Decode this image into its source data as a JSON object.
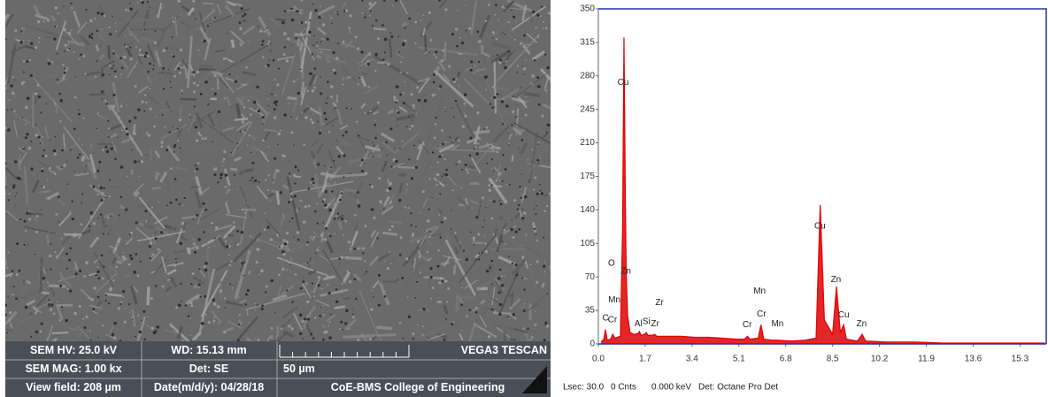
{
  "sem": {
    "info": [
      "SEM HV: 25.0 kV",
      "WD: 15.13 mm",
      "VEGA3 TESCAN",
      "SEM MAG: 1.00 kx",
      "Det: SE",
      "50 µm",
      "View field: 208 µm",
      "Date(m/d/y): 04/28/18",
      "CoE-BMS College of Engineering"
    ]
  },
  "chart_data": {
    "type": "spectrum",
    "x": [
      0.1,
      0.2,
      0.26,
      0.32,
      0.45,
      0.52,
      0.6,
      0.8,
      0.88,
      0.93,
      0.98,
      1.01,
      1.06,
      1.15,
      1.3,
      1.45,
      1.49,
      1.55,
      1.68,
      1.74,
      1.8,
      1.95,
      2.04,
      2.12,
      2.5,
      3.0,
      3.5,
      4.0,
      4.5,
      5.0,
      5.3,
      5.41,
      5.5,
      5.8,
      5.9,
      6.0,
      6.3,
      6.5,
      7.0,
      7.5,
      7.9,
      8.05,
      8.2,
      8.5,
      8.64,
      8.78,
      8.9,
      9.0,
      9.4,
      9.57,
      9.7,
      10.5,
      11.5,
      12.5,
      13.5,
      14.5,
      15.5,
      16.2
    ],
    "series": [
      {
        "color": "#e00000",
        "values": [
          2,
          5,
          15,
          4,
          5,
          10,
          6,
          8,
          120,
          320,
          150,
          75,
          30,
          12,
          10,
          11,
          13,
          9,
          10,
          12,
          9,
          9,
          10,
          8,
          8,
          8,
          7,
          7,
          6,
          5,
          5,
          8,
          5,
          6,
          20,
          5,
          4,
          4,
          3,
          4,
          6,
          145,
          25,
          10,
          60,
          12,
          20,
          5,
          3,
          10,
          3,
          2,
          2,
          1,
          1,
          1,
          1,
          1
        ]
      }
    ],
    "xlim": [
      0,
      16.25
    ],
    "ylim": [
      0,
      350
    ],
    "xticks": [
      {
        "value": 0,
        "label": "0.0"
      },
      1.7,
      3.4,
      5.1,
      6.8,
      8.5,
      10.2,
      11.9,
      13.6,
      15.3
    ],
    "yticks": [
      0,
      35,
      70,
      105,
      140,
      175,
      210,
      245,
      280,
      315,
      350
    ],
    "frame_color": "#2233aa",
    "annotations": [
      {
        "text": "Cu",
        "x": 0.9,
        "y": 273
      },
      {
        "text": "O",
        "x": 0.48,
        "y": 84
      },
      {
        "text": "Zn",
        "x": 1.0,
        "y": 76
      },
      {
        "text": "Mn",
        "x": 0.58,
        "y": 46
      },
      {
        "text": "Cr",
        "x": 0.51,
        "y": 25
      },
      {
        "text": "C",
        "x": 0.26,
        "y": 27
      },
      {
        "text": "Al",
        "x": 1.45,
        "y": 21
      },
      {
        "text": "Si",
        "x": 1.74,
        "y": 23
      },
      {
        "text": "Zr",
        "x": 2.06,
        "y": 21
      },
      {
        "text": "Zr",
        "x": 2.22,
        "y": 43
      },
      {
        "text": "Mn",
        "x": 5.85,
        "y": 55
      },
      {
        "text": "Cr",
        "x": 5.92,
        "y": 31
      },
      {
        "text": "Cr",
        "x": 5.4,
        "y": 20
      },
      {
        "text": "Mn",
        "x": 6.5,
        "y": 21
      },
      {
        "text": "Cu",
        "x": 8.04,
        "y": 123
      },
      {
        "text": "Zn",
        "x": 8.62,
        "y": 67
      },
      {
        "text": "Cu",
        "x": 8.9,
        "y": 30
      },
      {
        "text": "Zn",
        "x": 9.55,
        "y": 21
      }
    ],
    "footer": [
      "Lsec: 30.0",
      "0 Cnts",
      "0.000 keV",
      "Det: Octane Pro Det"
    ]
  }
}
